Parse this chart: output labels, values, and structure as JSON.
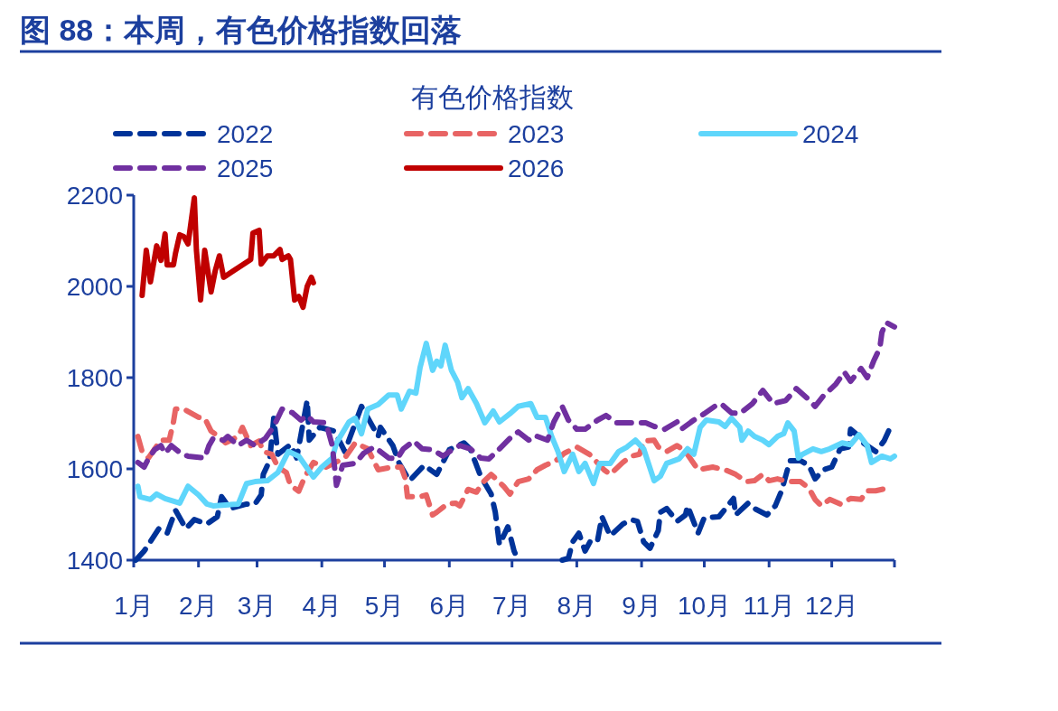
{
  "chart_data": {
    "type": "line",
    "title": "图 88：本周，有色价格指数回落",
    "subtitle": "有色价格指数",
    "xlim": [
      "--01-01",
      "--12-31"
    ],
    "xticks": [
      {
        "value": "--01-01",
        "label": "1月"
      },
      {
        "value": "--02-01",
        "label": "2月"
      },
      {
        "value": "--03-01",
        "label": "3月"
      },
      {
        "value": "--04-01",
        "label": "4月"
      },
      {
        "value": "--05-01",
        "label": "5月"
      },
      {
        "value": "--06-01",
        "label": "6月"
      },
      {
        "value": "--07-01",
        "label": "7月"
      },
      {
        "value": "--08-01",
        "label": "8月"
      },
      {
        "value": "--09-01",
        "label": "9月"
      },
      {
        "value": "--10-01",
        "label": "10月"
      },
      {
        "value": "--11-01",
        "label": "11月"
      },
      {
        "value": "--12-01",
        "label": "12月"
      },
      {
        "value": "--12-31",
        "label": null
      }
    ],
    "ylim": [
      1400,
      2200
    ],
    "yticks": [
      1400,
      1600,
      1800,
      2000,
      2200
    ],
    "grid": false,
    "legend": "top",
    "series": [
      {
        "name": "2022",
        "color": "#003399",
        "line_style": "dashed",
        "x": [
          "--01-02",
          "--01-06",
          "--01-13",
          "--01-17",
          "--01-21",
          "--01-26",
          "--01-30",
          "--02-05",
          "--02-10",
          "--02-12",
          "--02-16",
          "--02-24",
          "--02-28",
          "--03-03",
          "--03-04",
          "--03-07",
          "--03-09",
          "--03-11",
          "--03-17",
          "--03-20",
          "--03-25",
          "--03-26",
          "--03-31",
          "--04-07",
          "--04-12",
          "--04-20",
          "--04-28",
          "--04-29",
          "--05-05",
          "--05-08",
          "--05-13",
          "--05-20",
          "--05-26",
          "--06-01",
          "--06-08",
          "--06-11",
          "--06-16",
          "--06-21",
          "--06-23",
          "--06-25",
          "--06-29",
          "--07-02",
          "--07-04",
          "--07-15",
          "--07-25",
          "--07-28",
          "--07-30",
          "--08-02",
          "--08-05",
          "--08-08",
          "--08-11",
          "--08-13",
          "--08-17",
          "--08-23",
          "--08-27",
          "--08-30",
          "--09-02",
          "--09-05",
          "--09-09",
          "--09-10",
          "--09-13",
          "--09-18",
          "--09-22",
          "--09-23",
          "--09-28",
          "--10-01",
          "--10-08",
          "--10-15",
          "--10-16",
          "--10-22",
          "--10-25",
          "--10-31",
          "--11-04",
          "--11-07",
          "--11-11",
          "--11-16",
          "--11-20",
          "--11-23",
          "--11-27",
          "--12-01",
          "--12-05",
          "--12-09",
          "--12-10",
          "--12-14",
          "--12-16",
          "--12-22",
          "--12-26",
          "--12-29"
        ],
        "values": [
          1400,
          1420,
          1469,
          1459,
          1509,
          1469,
          1489,
          1479,
          1495,
          1539,
          1513,
          1523,
          1523,
          1543,
          1588,
          1618,
          1711,
          1632,
          1653,
          1624,
          1750,
          1663,
          1691,
          1683,
          1638,
          1737,
          1671,
          1691,
          1651,
          1612,
          1574,
          1608,
          1588,
          1642,
          1657,
          1644,
          1584,
          1545,
          1505,
          1434,
          1473,
          1420,
          1400,
          null,
          1400,
          1404,
          1440,
          1459,
          1420,
          1446,
          1444,
          1495,
          1453,
          1479,
          1489,
          1485,
          1440,
          1426,
          1465,
          1505,
          1513,
          1485,
          1499,
          1519,
          1459,
          1493,
          1495,
          1535,
          1499,
          1525,
          1513,
          1499,
          1519,
          1552,
          1618,
          1618,
          1608,
          1578,
          1598,
          1604,
          1644,
          1648,
          1687,
          1671,
          1657,
          1638,
          1661,
          1691
        ]
      },
      {
        "name": "2023",
        "color": "#e86464",
        "line_style": "dashed",
        "x": [
          "--01-03",
          "--01-05",
          "--01-08",
          "--01-14",
          "--01-18",
          "--01-20",
          "--01-21",
          "--01-25",
          "--02-01",
          "--02-04",
          "--02-07",
          "--02-10",
          "--02-14",
          "--02-20",
          "--02-22",
          "--02-26",
          "--03-02",
          "--03-04",
          "--03-08",
          "--03-11",
          "--03-15",
          "--03-17",
          "--03-21",
          "--03-24",
          "--03-28",
          "--04-03",
          "--04-12",
          "--04-17",
          "--04-23",
          "--04-28",
          "--05-05",
          "--05-09",
          "--05-11",
          "--05-12",
          "--05-18",
          "--05-21",
          "--05-24",
          "--05-26",
          "--05-31",
          "--06-04",
          "--06-06",
          "--06-10",
          "--06-14",
          "--06-17",
          "--06-21",
          "--06-27",
          "--06-30",
          "--07-04",
          "--07-09",
          "--07-13",
          "--07-17",
          "--07-22",
          "--07-26",
          "--08-01",
          "--08-07",
          "--08-14",
          "--08-17",
          "--08-23",
          "--08-27",
          "--08-31",
          "--09-02",
          "--09-07",
          "--09-09",
          "--09-13",
          "--09-18",
          "--09-22",
          "--09-28",
          "--10-05",
          "--10-11",
          "--10-16",
          "--10-21",
          "--10-25",
          "--10-29",
          "--11-01",
          "--11-05",
          "--11-10",
          "--11-16",
          "--11-20",
          "--11-23",
          "--11-26",
          "--11-30",
          "--12-05",
          "--12-10",
          "--12-15",
          "--12-18",
          "--12-22",
          "--12-28"
        ],
        "values": [
          1671,
          1638,
          1624,
          1663,
          1663,
          1703,
          1731,
          1731,
          1713,
          1711,
          1683,
          1673,
          1657,
          1671,
          1691,
          1651,
          1661,
          1638,
          1632,
          1604,
          1592,
          1564,
          1551,
          1584,
          1614,
          1604,
          1624,
          1657,
          1644,
          1598,
          1604,
          1604,
          1578,
          1539,
          1539,
          1543,
          1499,
          1505,
          1523,
          1525,
          1519,
          1555,
          1549,
          1570,
          1588,
          1562,
          1545,
          1572,
          1578,
          1598,
          1608,
          1618,
          1634,
          1648,
          1632,
          1598,
          1588,
          1614,
          1628,
          1632,
          1661,
          1663,
          1648,
          1638,
          1651,
          1638,
          1598,
          1604,
          1598,
          1588,
          1572,
          1574,
          1588,
          1574,
          1578,
          1572,
          1572,
          1558,
          1533,
          1519,
          1533,
          1523,
          1535,
          1533,
          1552,
          1552,
          1558
        ]
      },
      {
        "name": "2024",
        "color": "#5fd6fb",
        "line_style": "solid",
        "x": [
          "--01-03",
          "--01-04",
          "--01-09",
          "--01-12",
          "--01-16",
          "--01-23",
          "--01-27",
          "--02-01",
          "--02-05",
          "--02-08",
          "--02-20",
          "--02-24",
          "--02-28",
          "--03-06",
          "--03-11",
          "--03-16",
          "--03-21",
          "--03-28",
          "--04-01",
          "--04-06",
          "--04-08",
          "--04-14",
          "--04-17",
          "--04-20",
          "--04-23",
          "--04-28",
          "--05-03",
          "--05-07",
          "--05-09",
          "--05-13",
          "--05-16",
          "--05-18",
          "--05-21",
          "--05-24",
          "--05-26",
          "--05-28",
          "--05-30",
          "--06-02",
          "--06-05",
          "--06-07",
          "--06-10",
          "--06-14",
          "--06-18",
          "--06-22",
          "--06-25",
          "--06-30",
          "--07-04",
          "--07-10",
          "--07-13",
          "--07-17",
          "--07-20",
          "--07-23",
          "--07-26",
          "--07-30",
          "--08-02",
          "--08-05",
          "--08-09",
          "--08-12",
          "--08-17",
          "--08-21",
          "--08-25",
          "--08-29",
          "--09-02",
          "--09-07",
          "--09-10",
          "--09-13",
          "--09-19",
          "--09-23",
          "--09-26",
          "--09-29",
          "--10-02",
          "--10-08",
          "--10-11",
          "--10-14",
          "--10-18",
          "--10-19",
          "--10-22",
          "--10-25",
          "--10-29",
          "--11-01",
          "--11-05",
          "--11-08",
          "--11-10",
          "--11-13",
          "--11-15",
          "--11-17",
          "--11-22",
          "--11-26",
          "--11-30",
          "--12-06",
          "--12-10",
          "--12-14",
          "--12-18",
          "--12-20",
          "--12-25",
          "--12-29",
          "--12-31"
        ],
        "values": [
          1562,
          1539,
          1533,
          1545,
          1535,
          1525,
          1562,
          1543,
          1523,
          1519,
          1523,
          1568,
          1572,
          1574,
          1592,
          1638,
          1628,
          1582,
          1604,
          1624,
          1657,
          1703,
          1711,
          1677,
          1731,
          1741,
          1762,
          1762,
          1731,
          1770,
          1766,
          1822,
          1875,
          1816,
          1836,
          1826,
          1871,
          1816,
          1790,
          1756,
          1776,
          1743,
          1701,
          1727,
          1703,
          1721,
          1737,
          1743,
          1713,
          1713,
          1671,
          1638,
          1594,
          1632,
          1594,
          1612,
          1568,
          1612,
          1612,
          1638,
          1648,
          1663,
          1644,
          1574,
          1584,
          1612,
          1622,
          1644,
          1632,
          1691,
          1707,
          1703,
          1693,
          1711,
          1691,
          1663,
          1683,
          1671,
          1663,
          1653,
          1671,
          1677,
          1701,
          1683,
          1624,
          1632,
          1644,
          1638,
          1644,
          1657,
          1653,
          1675,
          1651,
          1614,
          1628,
          1622,
          1628
        ]
      },
      {
        "name": "2025",
        "color": "#7030a0",
        "line_style": "dashed",
        "x": [
          "--01-03",
          "--01-06",
          "--01-08",
          "--01-11",
          "--01-14",
          "--01-16",
          "--01-19",
          "--01-24",
          "--01-27",
          "--02-04",
          "--02-06",
          "--02-08",
          "--02-13",
          "--02-15",
          "--02-20",
          "--02-24",
          "--02-28",
          "--03-05",
          "--03-09",
          "--03-13",
          "--03-18",
          "--03-22",
          "--03-25",
          "--03-28",
          "--04-03",
          "--04-06",
          "--04-08",
          "--04-11",
          "--04-17",
          "--04-21",
          "--04-26",
          "--04-29",
          "--05-03",
          "--05-07",
          "--05-10",
          "--05-15",
          "--05-19",
          "--05-24",
          "--05-29",
          "--06-03",
          "--06-06",
          "--06-11",
          "--06-16",
          "--06-20",
          "--06-25",
          "--06-30",
          "--07-04",
          "--07-09",
          "--07-12",
          "--07-18",
          "--07-21",
          "--07-25",
          "--07-28",
          "--08-01",
          "--08-05",
          "--08-11",
          "--08-15",
          "--08-20",
          "--08-25",
          "--09-03",
          "--09-07",
          "--09-12",
          "--09-18",
          "--09-20",
          "--09-26",
          "--10-01",
          "--10-06",
          "--10-09",
          "--10-14",
          "--10-18",
          "--10-24",
          "--10-29",
          "--11-03",
          "--11-09",
          "--11-14",
          "--11-19",
          "--11-23",
          "--11-27",
          "--12-03",
          "--12-07",
          "--12-10",
          "--12-15",
          "--12-18",
          "--12-21",
          "--12-24",
          "--12-25",
          "--12-27",
          "--12-31"
        ],
        "values": [
          1614,
          1604,
          1622,
          1642,
          1651,
          1634,
          1651,
          1632,
          1628,
          1624,
          1651,
          1667,
          1663,
          1671,
          1651,
          1663,
          1651,
          1667,
          1693,
          1731,
          1723,
          1707,
          1717,
          1703,
          1701,
          1651,
          1564,
          1608,
          1612,
          1634,
          1648,
          1638,
          1624,
          1622,
          1644,
          1661,
          1644,
          1642,
          1628,
          1644,
          1651,
          1644,
          1624,
          1622,
          1644,
          1667,
          1681,
          1663,
          1673,
          1663,
          1703,
          1737,
          1707,
          1687,
          1687,
          1707,
          1717,
          1701,
          1701,
          1701,
          1693,
          1687,
          1703,
          1687,
          1707,
          1721,
          1737,
          1743,
          1723,
          1721,
          1743,
          1772,
          1743,
          1750,
          1776,
          1756,
          1737,
          1760,
          1786,
          1812,
          1792,
          1820,
          1800,
          1836,
          1865,
          1899,
          1921,
          1911
        ]
      },
      {
        "name": "2026",
        "color": "#c00000",
        "line_style": "solid",
        "x": [
          "--01-05",
          "--01-07",
          "--01-09",
          "--01-12",
          "--01-14",
          "--01-16",
          "--01-17",
          "--01-20",
          "--01-21",
          "--01-23",
          "--01-25",
          "--01-27",
          "--01-28",
          "--01-30",
          "--01-31",
          "--02-02",
          "--02-04",
          "--02-07",
          "--02-09",
          "--02-11",
          "--02-13",
          "--02-26",
          "--02-27",
          "--03-02",
          "--03-03",
          "--03-06",
          "--03-09",
          "--03-12",
          "--03-13",
          "--03-16",
          "--03-17",
          "--03-19",
          "--03-21",
          "--03-23",
          "--03-25",
          "--03-27",
          "--03-28"
        ],
        "values": [
          1980,
          2079,
          2010,
          2089,
          2057,
          2115,
          2047,
          2047,
          2073,
          2113,
          2109,
          2093,
          2127,
          2194,
          2079,
          1970,
          2079,
          1988,
          2034,
          2067,
          2020,
          2059,
          2117,
          2123,
          2049,
          2067,
          2067,
          2081,
          2059,
          2067,
          2059,
          1970,
          1978,
          1954,
          2000,
          2020,
          2008
        ]
      }
    ]
  }
}
